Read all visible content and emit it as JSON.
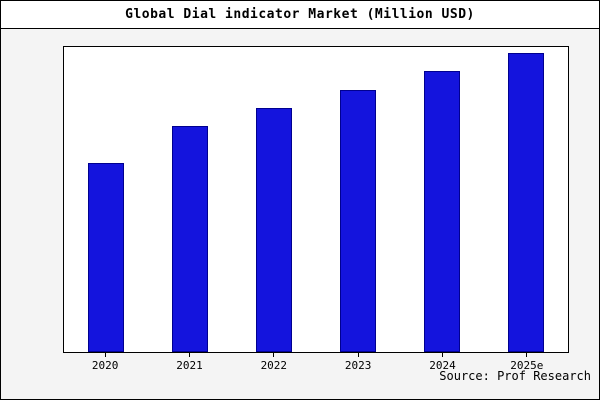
{
  "chart_data": {
    "type": "bar",
    "title": "Global Dial indicator Market (Million USD)",
    "categories": [
      "2020",
      "2021",
      "2022",
      "2023",
      "2024",
      "2025e"
    ],
    "values": [
      62,
      74,
      80,
      86,
      92,
      98
    ],
    "ylim": [
      0,
      100
    ],
    "xlabel": "",
    "ylabel": "",
    "grid": false,
    "legend_position": "none",
    "bar_color": "#1414dd",
    "bar_edge_color": "#000090",
    "source": "Source: Prof Research"
  }
}
